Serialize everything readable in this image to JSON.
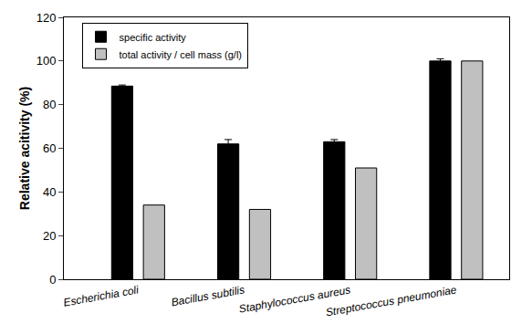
{
  "chart_data": {
    "type": "bar",
    "y_label": "Relative acitivity (%)",
    "categories": [
      "Escherichia coli",
      "Bacillus subtilis",
      "Staphylococcus aureus",
      "Streptococcus pneumoniae"
    ],
    "series": [
      {
        "name": "specific activity",
        "color": "#000000",
        "values": [
          88.5,
          62,
          63,
          100
        ],
        "errors": [
          0.5,
          2,
          1,
          1
        ]
      },
      {
        "name": "total activity / cell mass (g/l)",
        "color": "#c0c0c0",
        "values": [
          34,
          32,
          51,
          100
        ]
      }
    ],
    "ylim": [
      0,
      120
    ],
    "yticks": [
      0,
      20,
      40,
      60,
      80,
      100,
      120
    ],
    "grid": false,
    "legend": "upper left"
  }
}
